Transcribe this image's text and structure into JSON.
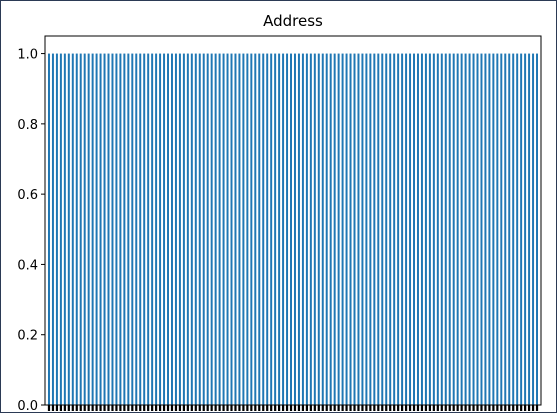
{
  "chart_data": {
    "type": "bar",
    "title": "Address",
    "xlabel": "",
    "ylabel": "",
    "ylim": [
      0,
      1.05
    ],
    "y_ticks": [
      "0.0",
      "0.2",
      "0.4",
      "0.6",
      "0.8",
      "1.0"
    ],
    "bar_count": 124,
    "bar_value": 1.0,
    "bar_color": "#1f77b4",
    "grid": false,
    "x_tick_labels_visible": false
  }
}
